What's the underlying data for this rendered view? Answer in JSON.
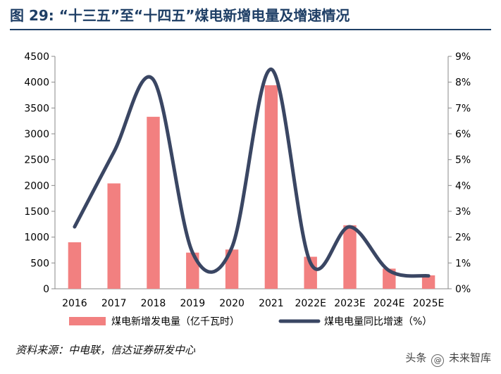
{
  "title": "图 29:  “十三五”至“十四五”煤电新增电量及增速情况",
  "source": "资料来源：中电联，信达证券研发中心",
  "watermark": {
    "prefix": "头条",
    "handle": "未来智库"
  },
  "colors": {
    "bar": "#f28080",
    "line": "#3a4663",
    "title": "#1f3f66"
  },
  "chart_data": {
    "type": "bar",
    "categories": [
      "2016",
      "2017",
      "2018",
      "2019",
      "2020",
      "2021",
      "2022E",
      "2023E",
      "2024E",
      "2025E"
    ],
    "series": [
      {
        "name": "煤电新增发电量（亿千瓦时）",
        "type": "bar",
        "axis": "left",
        "values": [
          900,
          2040,
          3330,
          700,
          760,
          3940,
          620,
          1230,
          390,
          260
        ]
      },
      {
        "name": "煤电电量同比增速（%）",
        "type": "line",
        "axis": "right",
        "values": [
          2.4,
          5.3,
          8.1,
          1.4,
          1.6,
          8.5,
          1.0,
          2.4,
          0.7,
          0.5
        ]
      }
    ],
    "y_left": {
      "lim": [
        0,
        4500
      ],
      "ticks": [
        "0",
        "500",
        "1000",
        "1500",
        "2000",
        "2500",
        "3000",
        "3500",
        "4000",
        "4500"
      ]
    },
    "y_right": {
      "lim": [
        0,
        9
      ],
      "ticks": [
        "0%",
        "1%",
        "2%",
        "3%",
        "4%",
        "5%",
        "6%",
        "7%",
        "8%",
        "9%"
      ]
    },
    "legend": "bottom",
    "grid": false
  }
}
